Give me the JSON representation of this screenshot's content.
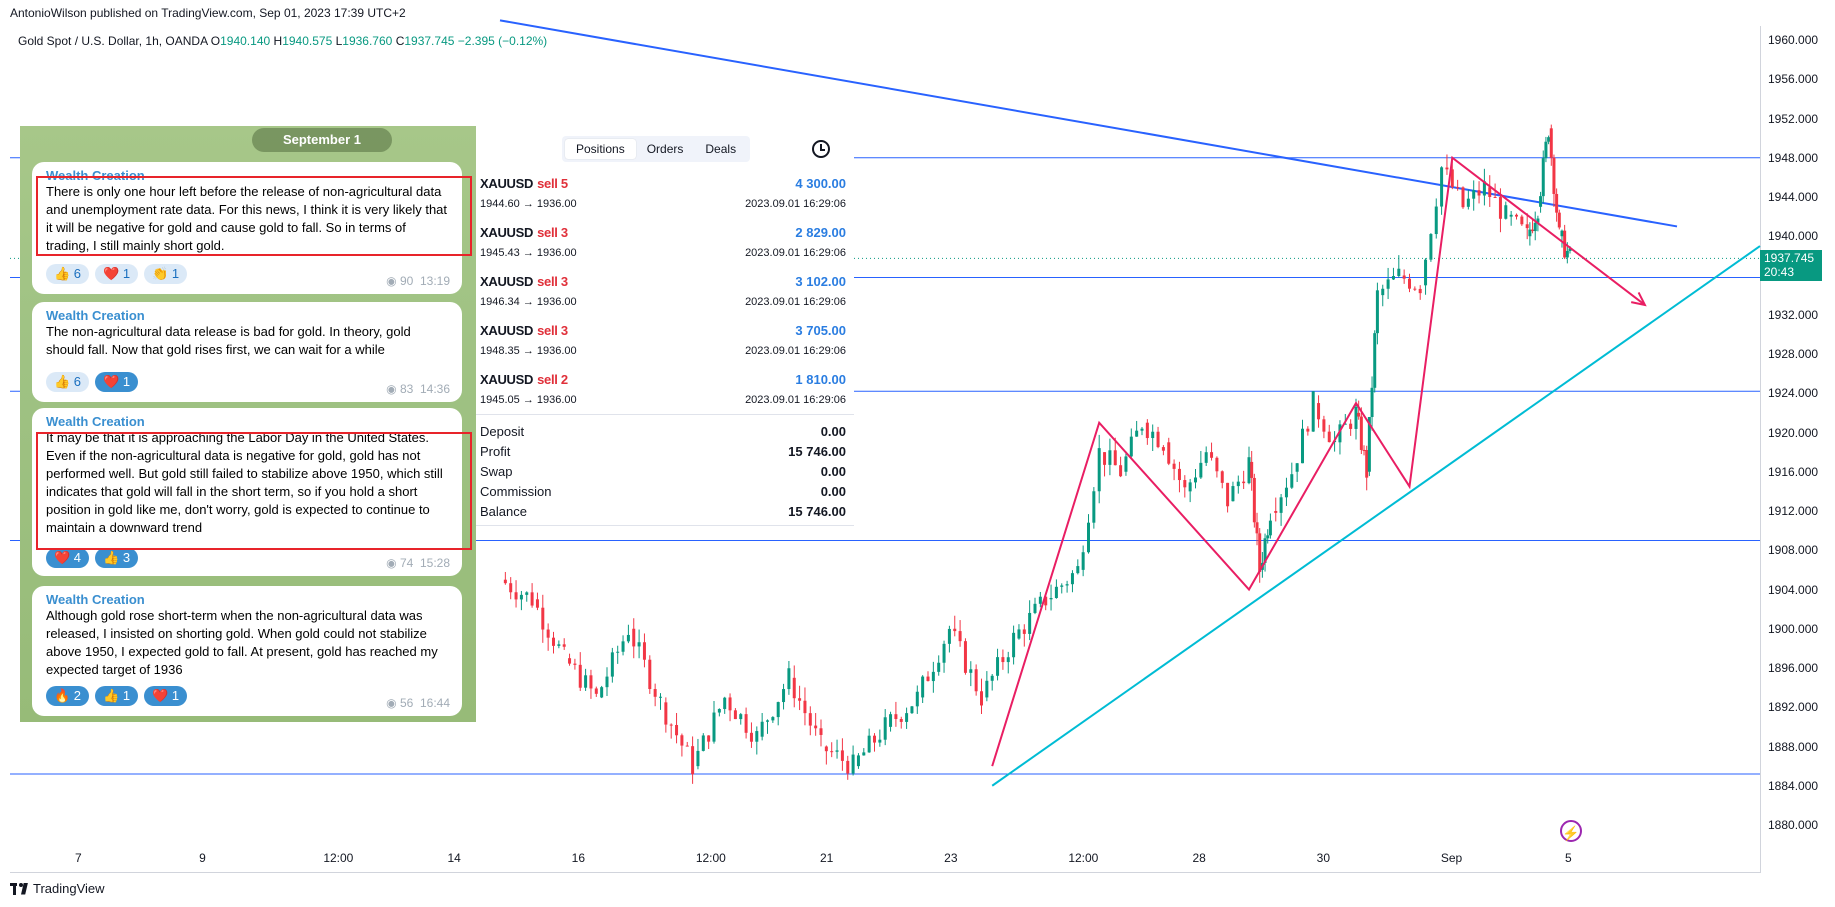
{
  "header": {
    "published_by": "AntonioWilson published on TradingView.com, Sep 01, 2023 17:39 UTC+2",
    "symbol": "Gold Spot / U.S. Dollar, 1h, OANDA",
    "ohlc": {
      "o_label": "O",
      "o_value": "1940.140",
      "h_label": "H",
      "h_value": "1940.575",
      "l_label": "L",
      "l_value": "1936.760",
      "c_label": "C",
      "c_value": "1937.745",
      "change": "−2.395 (−0.12%)"
    }
  },
  "chart_data": {
    "type": "line",
    "title": "",
    "x_axis_labels": [
      "7",
      "9",
      "12:00",
      "14",
      "16",
      "12:00",
      "21",
      "23",
      "12:00",
      "28",
      "30",
      "Sep",
      "5"
    ],
    "y_axis_labels": [
      "1960.000",
      "1956.000",
      "1952.000",
      "1948.000",
      "1944.000",
      "1940.000",
      "1932.000",
      "1928.000",
      "1924.000",
      "1920.000",
      "1916.000",
      "1912.000",
      "1908.000",
      "1904.000",
      "1900.000",
      "1896.000",
      "1892.000",
      "1888.000",
      "1884.000",
      "1880.000"
    ],
    "ylim": [
      1878,
      1962
    ],
    "last_price": "1937.745",
    "countdown": "20:43",
    "horizontal_levels": [
      1948.0,
      1935.8,
      1924.2,
      1909.0,
      1885.2
    ],
    "series": [
      {
        "name": "",
        "kind": "price-path",
        "points": [
          [
            0.0,
            1905.0
          ],
          [
            0.03,
            1903.0
          ],
          [
            0.06,
            1897.0
          ],
          [
            0.09,
            1893.0
          ],
          [
            0.12,
            1900.0
          ],
          [
            0.15,
            1892.5
          ],
          [
            0.18,
            1886.0
          ],
          [
            0.21,
            1893.0
          ],
          [
            0.24,
            1889.0
          ],
          [
            0.27,
            1895.0
          ],
          [
            0.3,
            1888.0
          ],
          [
            0.33,
            1886.0
          ],
          [
            0.36,
            1890.0
          ],
          [
            0.39,
            1893.0
          ],
          [
            0.42,
            1900.0
          ],
          [
            0.45,
            1893.0
          ],
          [
            0.48,
            1899.0
          ],
          [
            0.51,
            1903.0
          ],
          [
            0.54,
            1906.0
          ],
          [
            0.56,
            1918.0
          ],
          [
            0.58,
            1916.0
          ],
          [
            0.6,
            1921.0
          ],
          [
            0.62,
            1919.0
          ],
          [
            0.64,
            1914.0
          ],
          [
            0.66,
            1918.0
          ],
          [
            0.68,
            1913.0
          ],
          [
            0.7,
            1917.0
          ],
          [
            0.71,
            1906.0
          ],
          [
            0.72,
            1912.0
          ],
          [
            0.74,
            1916.0
          ],
          [
            0.76,
            1923.0
          ],
          [
            0.78,
            1919.0
          ],
          [
            0.8,
            1922.0
          ],
          [
            0.81,
            1916.0
          ],
          [
            0.82,
            1934.0
          ],
          [
            0.84,
            1936.0
          ],
          [
            0.86,
            1935.0
          ],
          [
            0.88,
            1947.0
          ],
          [
            0.9,
            1943.0
          ],
          [
            0.92,
            1945.0
          ],
          [
            0.94,
            1942.0
          ],
          [
            0.96,
            1940.0
          ],
          [
            0.97,
            1943.0
          ],
          [
            0.98,
            1951.0
          ],
          [
            0.99,
            1940.0
          ],
          [
            1.0,
            1937.745
          ]
        ]
      }
    ],
    "trendlines": [
      {
        "name": "",
        "from": [
          0.0,
          1962.0
        ],
        "to": [
          1.1,
          1941.0
        ]
      },
      {
        "name": "",
        "from": [
          0.46,
          1884.0
        ],
        "to": [
          1.18,
          1939.0
        ]
      }
    ],
    "projection_path": [
      [
        0.46,
        1886.0
      ],
      [
        0.56,
        1921.0
      ],
      [
        0.7,
        1904.0
      ],
      [
        0.8,
        1923.0
      ],
      [
        0.85,
        1914.5
      ],
      [
        0.89,
        1948.0
      ],
      [
        1.07,
        1933.0
      ]
    ],
    "colors": {
      "up": "#089981",
      "down": "#f23645",
      "resistance": "#2962ff",
      "support": "#00bcd4",
      "path": "#e91e63",
      "level": "#2962ff"
    }
  },
  "telegram": {
    "date": "September 1",
    "messages": [
      {
        "author": "Wealth Creation",
        "text": "There is only one hour left before the release of non-agricultural data and unemployment rate data. For this news, I think it is very likely that it will be negative for gold and cause gold to fall. So in terms of trading, I still mainly short gold.",
        "reactions": [
          "👍 6",
          "❤️ 1",
          "👏 1"
        ],
        "views": "90",
        "time": "13:19"
      },
      {
        "author": "Wealth Creation",
        "text": "The non-agricultural data release is bad for gold. In theory, gold should fall. Now that gold rises first, we can wait for a while",
        "reactions": [
          "👍 6",
          "❤️ 1"
        ],
        "views": "83",
        "time": "14:36"
      },
      {
        "author": "Wealth Creation",
        "text": "It may be that it is approaching the Labor Day in the United States. Even if the non-agricultural data is negative for gold, gold has not performed well. But gold still failed to stabilize above 1950, which still indicates that gold will fall in the short term, so if you hold a short position in gold like me, don't worry, gold is expected to continue to maintain a downward trend",
        "reactions": [
          "❤️ 4",
          "👍 3"
        ],
        "views": "74",
        "time": "15:28"
      },
      {
        "author": "Wealth Creation",
        "text": "Although gold rose short-term when the non-agricultural data was released, I insisted on shorting gold. When gold could not stabilize above 1950, I expected gold to fall. At present, gold has reached my expected target of 1936",
        "reactions": [
          "🔥 2",
          "👍 1",
          "❤️ 1"
        ],
        "views": "56",
        "time": "16:44"
      }
    ]
  },
  "positions": {
    "tabs": [
      "Positions",
      "Orders",
      "Deals"
    ],
    "rows": [
      {
        "symbol": "XAUUSD",
        "side": "sell 5",
        "prices": "1944.60 → 1936.00",
        "profit": "4 300.00",
        "time": "2023.09.01 16:29:06"
      },
      {
        "symbol": "XAUUSD",
        "side": "sell 3",
        "prices": "1945.43 → 1936.00",
        "profit": "2 829.00",
        "time": "2023.09.01 16:29:06"
      },
      {
        "symbol": "XAUUSD",
        "side": "sell 3",
        "prices": "1946.34 → 1936.00",
        "profit": "3 102.00",
        "time": "2023.09.01 16:29:06"
      },
      {
        "symbol": "XAUUSD",
        "side": "sell 3",
        "prices": "1948.35 → 1936.00",
        "profit": "3 705.00",
        "time": "2023.09.01 16:29:06"
      },
      {
        "symbol": "XAUUSD",
        "side": "sell 2",
        "prices": "1945.05 → 1936.00",
        "profit": "1 810.00",
        "time": "2023.09.01 16:29:06"
      }
    ],
    "summary": [
      {
        "label": "Deposit",
        "value": "0.00"
      },
      {
        "label": "Profit",
        "value": "15 746.00"
      },
      {
        "label": "Swap",
        "value": "0.00"
      },
      {
        "label": "Commission",
        "value": "0.00"
      },
      {
        "label": "Balance",
        "value": "15 746.00"
      }
    ]
  },
  "footer": {
    "brand": "TradingView",
    "lightning_icon": "lightning-icon"
  }
}
